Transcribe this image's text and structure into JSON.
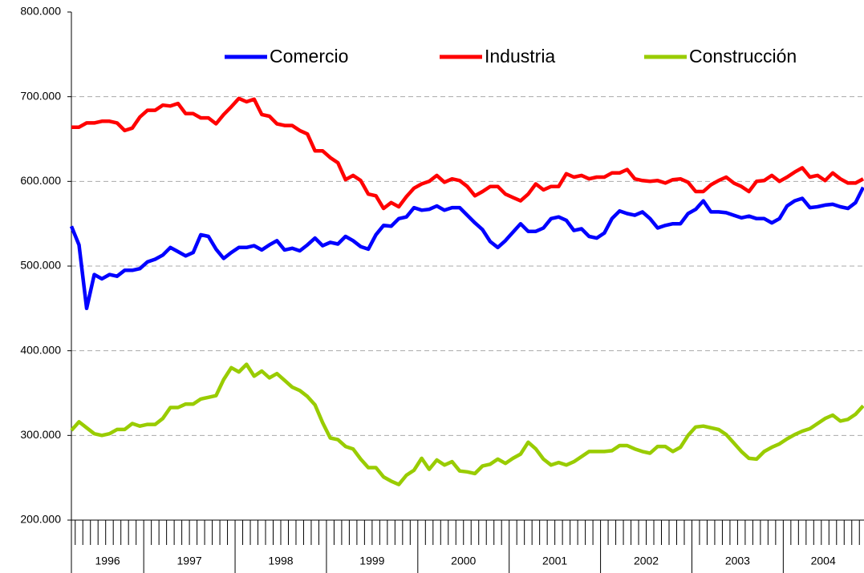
{
  "chart_data": {
    "type": "line",
    "categories": [
      "1996",
      "1996",
      "1996",
      "1996",
      "1996",
      "1996",
      "1996",
      "1996",
      "1996",
      "1996",
      "1997",
      "1997",
      "1997",
      "1997",
      "1997",
      "1997",
      "1997",
      "1997",
      "1997",
      "1997",
      "1997",
      "1997",
      "1998",
      "1998",
      "1998",
      "1998",
      "1998",
      "1998",
      "1998",
      "1998",
      "1998",
      "1998",
      "1998",
      "1998",
      "1999",
      "1999",
      "1999",
      "1999",
      "1999",
      "1999",
      "1999",
      "1999",
      "1999",
      "1999",
      "1999",
      "1999",
      "2000",
      "2000",
      "2000",
      "2000",
      "2000",
      "2000",
      "2000",
      "2000",
      "2000",
      "2000",
      "2000",
      "2000",
      "2001",
      "2001",
      "2001",
      "2001",
      "2001",
      "2001",
      "2001",
      "2001",
      "2001",
      "2001",
      "2001",
      "2001",
      "2002",
      "2002",
      "2002",
      "2002",
      "2002",
      "2002",
      "2002",
      "2002",
      "2002",
      "2002",
      "2002",
      "2002",
      "2003",
      "2003",
      "2003",
      "2003",
      "2003",
      "2003",
      "2003",
      "2003",
      "2003",
      "2003",
      "2003",
      "2003",
      "2004",
      "2004",
      "2004",
      "2004",
      "2004",
      "2004",
      "2004",
      "2004",
      "2004",
      "2004",
      "2004"
    ],
    "series": [
      {
        "name": "Comercio",
        "color": "#0000ff",
        "values": [
          547000,
          525000,
          450000,
          490000,
          485000,
          490000,
          488000,
          495000,
          495000,
          497000,
          505000,
          508000,
          513000,
          522000,
          517000,
          512000,
          516000,
          537000,
          535000,
          520000,
          509000,
          516000,
          522000,
          522000,
          524000,
          519000,
          525000,
          530000,
          519000,
          521000,
          518000,
          525000,
          533000,
          524000,
          528000,
          526000,
          535000,
          530000,
          523000,
          520000,
          537000,
          548000,
          547000,
          556000,
          558000,
          569000,
          566000,
          567000,
          571000,
          566000,
          569000,
          569000,
          560000,
          551000,
          543000,
          529000,
          522000,
          530000,
          540000,
          550000,
          541000,
          541000,
          545000,
          556000,
          558000,
          554000,
          542000,
          544000,
          535000,
          533000,
          539000,
          556000,
          565000,
          562000,
          560000,
          564000,
          556000,
          545000,
          548000,
          550000,
          550000,
          562000,
          567000,
          577000,
          564000,
          564000,
          563000,
          560000,
          557000,
          559000,
          556000,
          556000,
          551000,
          556000,
          571000,
          577000,
          580000,
          569000,
          570000,
          572000,
          573000,
          570000,
          568000,
          575000,
          593000
        ]
      },
      {
        "name": "Industria",
        "color": "#ff0000",
        "values": [
          664000,
          664000,
          669000,
          669000,
          671000,
          671000,
          669000,
          660000,
          663000,
          676000,
          684000,
          684000,
          690000,
          689000,
          692000,
          680000,
          680000,
          675000,
          675000,
          668000,
          679000,
          688000,
          698000,
          694000,
          697000,
          679000,
          677000,
          668000,
          666000,
          666000,
          660000,
          656000,
          636000,
          636000,
          628000,
          622000,
          602000,
          607000,
          601000,
          585000,
          583000,
          568000,
          575000,
          570000,
          582000,
          592000,
          597000,
          600000,
          607000,
          599000,
          603000,
          601000,
          594000,
          583000,
          588000,
          594000,
          594000,
          585000,
          581000,
          577000,
          585000,
          597000,
          590000,
          594000,
          594000,
          609000,
          605000,
          607000,
          603000,
          605000,
          605000,
          610000,
          610000,
          614000,
          603000,
          601000,
          600000,
          601000,
          598000,
          602000,
          603000,
          599000,
          588000,
          588000,
          596000,
          601000,
          605000,
          598000,
          594000,
          588000,
          600000,
          601000,
          607000,
          600000,
          605000,
          611000,
          616000,
          605000,
          607000,
          601000,
          610000,
          603000,
          598000,
          598000,
          603000
        ]
      },
      {
        "name": "Construcción",
        "color": "#99cc00",
        "values": [
          306000,
          316000,
          309000,
          302000,
          300000,
          302000,
          307000,
          307000,
          314000,
          311000,
          313000,
          313000,
          320000,
          333000,
          333000,
          337000,
          337000,
          343000,
          345000,
          347000,
          366000,
          380000,
          375000,
          384000,
          370000,
          376000,
          368000,
          373000,
          365000,
          357000,
          353000,
          346000,
          336000,
          315000,
          297000,
          295000,
          287000,
          284000,
          272000,
          262000,
          262000,
          251000,
          246000,
          242000,
          253000,
          259000,
          273000,
          260000,
          271000,
          265000,
          269000,
          258000,
          257000,
          255000,
          264000,
          266000,
          272000,
          267000,
          273000,
          278000,
          292000,
          284000,
          272000,
          265000,
          268000,
          265000,
          269000,
          275000,
          281000,
          281000,
          281000,
          282000,
          288000,
          288000,
          284000,
          281000,
          279000,
          287000,
          287000,
          281000,
          286000,
          300000,
          310000,
          311000,
          309000,
          307000,
          301000,
          291000,
          281000,
          273000,
          272000,
          281000,
          286000,
          290000,
          296000,
          301000,
          305000,
          308000,
          314000,
          320000,
          324000,
          317000,
          319000,
          325000,
          335000
        ]
      }
    ],
    "ylim": [
      200000,
      800000
    ],
    "yticks": [
      {
        "value": 200000,
        "label": "200.000"
      },
      {
        "value": 300000,
        "label": "300.000"
      },
      {
        "value": 400000,
        "label": "400.000"
      },
      {
        "value": 500000,
        "label": "500.000"
      },
      {
        "value": 600000,
        "label": "600.000"
      },
      {
        "value": 700000,
        "label": "700.000"
      },
      {
        "value": 800000,
        "label": "800.000"
      }
    ],
    "grid": true,
    "legend": "top"
  }
}
